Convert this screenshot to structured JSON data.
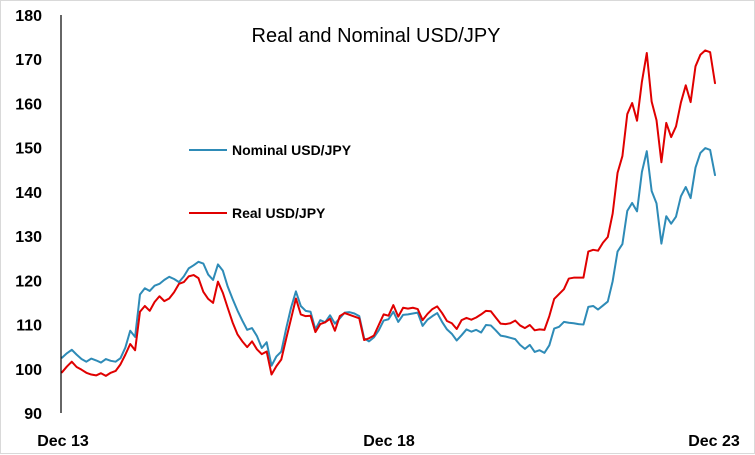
{
  "chart_data": {
    "type": "line",
    "title": "Real and Nominal USD/JPY",
    "xlabel": "",
    "ylabel": "",
    "ylim": [
      90,
      180
    ],
    "yticks": [
      90,
      100,
      110,
      120,
      130,
      140,
      150,
      160,
      170,
      180
    ],
    "x_tick_labels": [
      "Dec 13",
      "Dec 18",
      "Dec 23"
    ],
    "x_start": "Dec 13",
    "x_end": "Dec 23",
    "grid": false,
    "legend_position": "center-left",
    "series": [
      {
        "name": "Nominal USD/JPY",
        "color": "#2e8bb7",
        "values": [
          102.5,
          103.5,
          104.3,
          103.2,
          102.2,
          101.6,
          102.3,
          101.9,
          101.4,
          102.2,
          101.8,
          101.6,
          102.4,
          104.8,
          108.6,
          107.2,
          116.8,
          118.2,
          117.6,
          118.8,
          119.2,
          120.1,
          120.8,
          120.3,
          119.6,
          120.9,
          122.7,
          123.4,
          124.2,
          123.8,
          121.3,
          120.1,
          123.6,
          122.2,
          118.6,
          115.8,
          113.2,
          110.9,
          108.8,
          109.2,
          107.4,
          104.7,
          106.0,
          100.7,
          102.8,
          103.9,
          109.1,
          113.8,
          117.5,
          114.2,
          113.1,
          112.9,
          108.9,
          111.0,
          110.5,
          112.1,
          110.2,
          111.4,
          112.7,
          112.8,
          112.5,
          111.9,
          106.9,
          106.2,
          107.1,
          108.7,
          110.9,
          111.2,
          112.9,
          110.6,
          112.2,
          112.3,
          112.5,
          112.7,
          109.7,
          111.1,
          111.9,
          112.6,
          110.6,
          108.9,
          107.9,
          106.4,
          107.6,
          108.9,
          108.4,
          108.8,
          108.2,
          109.9,
          109.8,
          108.7,
          107.5,
          107.3,
          107.0,
          106.7,
          105.4,
          104.5,
          105.4,
          103.8,
          104.2,
          103.6,
          105.3,
          109.1,
          109.5,
          110.6,
          110.4,
          110.3,
          110.1,
          110.0,
          114.0,
          114.2,
          113.4,
          114.3,
          115.2,
          119.8,
          126.5,
          128.2,
          135.7,
          137.5,
          135.6,
          144.5,
          149.2,
          140.2,
          137.4,
          128.3,
          134.5,
          132.8,
          134.4,
          139.0,
          141.1,
          138.6,
          145.5,
          148.8,
          149.9,
          149.5,
          143.8
        ]
      },
      {
        "name": "Real USD/JPY",
        "color": "#e00000",
        "values": [
          99.2,
          100.5,
          101.6,
          100.4,
          99.8,
          99.1,
          98.7,
          98.5,
          99.0,
          98.4,
          99.1,
          99.5,
          101.0,
          103.2,
          105.6,
          104.2,
          112.9,
          114.2,
          113.1,
          115.1,
          116.4,
          115.3,
          115.9,
          117.3,
          119.2,
          119.6,
          120.9,
          121.2,
          120.5,
          117.4,
          115.8,
          114.9,
          119.7,
          117.2,
          113.8,
          110.5,
          107.8,
          106.2,
          104.9,
          106.2,
          104.4,
          103.3,
          103.9,
          98.7,
          100.6,
          102.1,
          106.8,
          111.3,
          115.9,
          112.3,
          111.9,
          112.0,
          108.3,
          110.1,
          110.5,
          111.3,
          108.6,
          111.9,
          112.6,
          112.2,
          111.8,
          111.4,
          106.5,
          106.9,
          107.5,
          109.9,
          112.3,
          112.0,
          114.4,
          111.8,
          113.8,
          113.6,
          113.8,
          113.5,
          111.0,
          112.4,
          113.5,
          114.1,
          112.6,
          110.8,
          110.3,
          109.0,
          111.0,
          111.5,
          111.1,
          111.6,
          112.3,
          113.1,
          113.0,
          111.6,
          110.2,
          110.1,
          110.3,
          110.9,
          109.8,
          109.2,
          109.9,
          108.7,
          108.9,
          108.8,
          111.9,
          115.8,
          116.9,
          118.0,
          120.4,
          120.6,
          120.6,
          120.6,
          126.5,
          126.9,
          126.7,
          128.5,
          129.8,
          135.1,
          144.3,
          148.1,
          157.6,
          160.1,
          156.1,
          164.9,
          171.4,
          160.4,
          156.2,
          146.7,
          155.6,
          152.4,
          154.8,
          160.2,
          164.1,
          160.3,
          168.4,
          171.0,
          172.0,
          171.6,
          164.6
        ]
      }
    ]
  }
}
